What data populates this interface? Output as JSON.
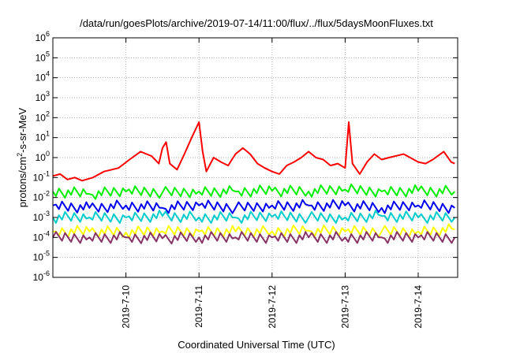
{
  "chart_data": {
    "type": "line",
    "title": "/data/run/goesPlots/archive/2019-07-14/11:00/flux/../flux/5daysMoonFluxes.txt",
    "xlabel": "Coordinated Universal Time (UTC)",
    "ylabel": {
      "pre": "protons/cm",
      "sup": "2",
      "post": "-s-sr-MeV"
    },
    "x_ticks": [
      "2019-7-10",
      "2019-7-11",
      "2019-7-12",
      "2019-7-13",
      "2019-7-14"
    ],
    "xlim": [
      "2019-07-09",
      "2019-07-14 13:00"
    ],
    "ylim": [
      1e-06,
      1000000.0
    ],
    "yscale": "log",
    "y_ticks": [
      {
        "base": "10",
        "exp": "-6"
      },
      {
        "base": "10",
        "exp": "-5"
      },
      {
        "base": "10",
        "exp": "-4"
      },
      {
        "base": "10",
        "exp": "-3"
      },
      {
        "base": "10",
        "exp": "-2"
      },
      {
        "base": "10",
        "exp": "-1"
      },
      {
        "base": "10",
        "exp": "0"
      },
      {
        "base": "10",
        "exp": "1"
      },
      {
        "base": "10",
        "exp": "2"
      },
      {
        "base": "10",
        "exp": "3"
      },
      {
        "base": "10",
        "exp": "4"
      },
      {
        "base": "10",
        "exp": "5"
      },
      {
        "base": "10",
        "exp": "6"
      }
    ],
    "grid": true,
    "series": [
      {
        "color": "#ff0000",
        "x": [
          0.0,
          0.1,
          0.2,
          0.3,
          0.4,
          0.55,
          0.7,
          0.9,
          1.05,
          1.2,
          1.35,
          1.45,
          1.5,
          1.55,
          1.6,
          1.7,
          1.8,
          1.9,
          2.0,
          2.05,
          2.1,
          2.2,
          2.3,
          2.4,
          2.45,
          2.5,
          2.6,
          2.7,
          2.8,
          2.9,
          3.0,
          3.1,
          3.2,
          3.3,
          3.4,
          3.5,
          3.6,
          3.7,
          3.8,
          3.9,
          4.0,
          4.05,
          4.1,
          4.2,
          4.3,
          4.4,
          4.5,
          4.6,
          4.8,
          5.0,
          5.1,
          5.2,
          5.35,
          5.45,
          5.5
        ],
        "y": [
          0.12,
          0.15,
          0.08,
          0.1,
          0.07,
          0.1,
          0.2,
          0.3,
          0.8,
          2.0,
          1.2,
          0.5,
          3.0,
          6.0,
          0.5,
          0.25,
          1.5,
          10.0,
          60.0,
          2.0,
          0.2,
          1.0,
          0.6,
          0.4,
          0.8,
          1.5,
          3.0,
          1.5,
          0.5,
          0.3,
          0.2,
          0.15,
          0.4,
          0.6,
          1.0,
          2.0,
          1.0,
          0.8,
          0.4,
          0.5,
          0.3,
          60.0,
          0.5,
          0.15,
          0.6,
          1.5,
          0.8,
          1.0,
          1.5,
          0.6,
          0.5,
          0.8,
          2.0,
          0.6,
          0.5
        ]
      },
      {
        "color": "#00ee00",
        "x": [
          0.0,
          0.5,
          1.0,
          1.5,
          2.0,
          2.5,
          3.0,
          3.5,
          4.0,
          4.5,
          5.0,
          5.5
        ],
        "y": [
          0.02,
          0.015,
          0.02,
          0.018,
          0.02,
          0.02,
          0.022,
          0.02,
          0.025,
          0.02,
          0.022,
          0.02
        ]
      },
      {
        "color": "#0000ee",
        "x": [
          0.0,
          0.5,
          1.0,
          1.5,
          2.0,
          2.5,
          3.0,
          3.5,
          4.0,
          4.5,
          5.0,
          5.5
        ],
        "y": [
          0.004,
          0.003,
          0.004,
          0.003,
          0.004,
          0.003,
          0.004,
          0.004,
          0.004,
          0.003,
          0.004,
          0.003
        ]
      },
      {
        "color": "#00cccc",
        "x": [
          0.0,
          0.5,
          1.0,
          1.5,
          2.0,
          2.5,
          3.0,
          3.5,
          4.0,
          4.5,
          5.0,
          5.5
        ],
        "y": [
          0.001,
          0.001,
          0.001,
          0.0012,
          0.001,
          0.001,
          0.0011,
          0.001,
          0.001,
          0.0012,
          0.001,
          0.001
        ]
      },
      {
        "color": "#ffff00",
        "x": [
          0.0,
          0.5,
          1.0,
          1.5,
          2.0,
          2.5,
          3.0,
          3.5,
          4.0,
          4.5,
          5.0,
          5.5
        ],
        "y": [
          0.0002,
          0.0002,
          0.00018,
          0.0002,
          0.0002,
          0.0002,
          0.0002,
          0.00022,
          0.0002,
          0.0002,
          0.0002,
          0.00025
        ]
      },
      {
        "color": "#883366",
        "x": [
          0.0,
          0.5,
          1.0,
          1.5,
          2.0,
          2.5,
          3.0,
          3.5,
          4.0,
          4.5,
          5.0,
          5.5
        ],
        "y": [
          0.0001,
          0.0001,
          0.0001,
          9e-05,
          0.0001,
          0.0001,
          0.0001,
          0.0001,
          0.0001,
          0.0001,
          0.0001,
          0.0001
        ]
      }
    ]
  }
}
